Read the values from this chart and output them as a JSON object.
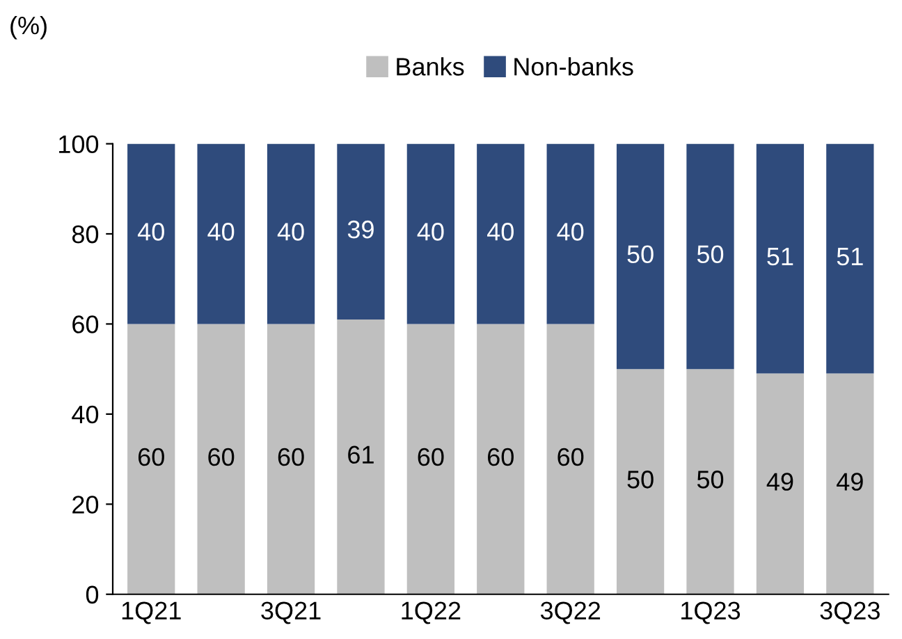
{
  "chart_data": {
    "type": "bar",
    "stacked": true,
    "ylabel": "(%)",
    "categories": [
      "1Q21",
      null,
      "3Q21",
      null,
      "1Q22",
      null,
      "3Q22",
      null,
      "1Q23",
      null,
      "3Q23"
    ],
    "series": [
      {
        "name": "Banks",
        "color": "#bfbfbf",
        "values": [
          60,
          60,
          60,
          61,
          60,
          60,
          60,
          50,
          50,
          49,
          49
        ]
      },
      {
        "name": "Non-banks",
        "color": "#2f4b7c",
        "values": [
          40,
          40,
          40,
          39,
          40,
          40,
          40,
          50,
          50,
          51,
          51
        ]
      }
    ],
    "ylim": [
      0,
      100
    ],
    "yticks": [
      0,
      20,
      40,
      60,
      80,
      100
    ],
    "grid": false,
    "legend": "top",
    "data_labels": true
  }
}
